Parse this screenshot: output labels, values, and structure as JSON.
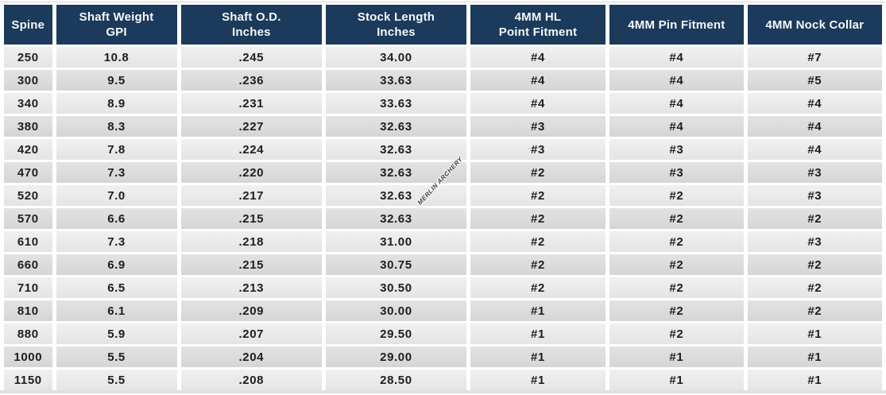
{
  "watermark": "MERLIN ARCHERY",
  "colors": {
    "header_bg": "#1b3a5c",
    "header_text": "#f6f8fa",
    "row_light": "#ececec",
    "row_dark": "#dcdcdc",
    "cell_text": "#1e1e1c",
    "page_bg": "#ffffff"
  },
  "chart_data": {
    "type": "table",
    "columns": [
      {
        "label_line1": "Spine",
        "label_line2": ""
      },
      {
        "label_line1": "Shaft Weight",
        "label_line2": "GPI"
      },
      {
        "label_line1": "Shaft O.D.",
        "label_line2": "Inches"
      },
      {
        "label_line1": "Stock Length",
        "label_line2": "Inches"
      },
      {
        "label_line1": "4MM HL",
        "label_line2": "Point Fitment"
      },
      {
        "label_line1": "4MM Pin Fitment",
        "label_line2": ""
      },
      {
        "label_line1": "4MM Nock Collar",
        "label_line2": ""
      }
    ],
    "rows": [
      [
        "250",
        "10.8",
        ".245",
        "34.00",
        "#4",
        "#4",
        "#7"
      ],
      [
        "300",
        "9.5",
        ".236",
        "33.63",
        "#4",
        "#4",
        "#5"
      ],
      [
        "340",
        "8.9",
        ".231",
        "33.63",
        "#4",
        "#4",
        "#4"
      ],
      [
        "380",
        "8.3",
        ".227",
        "32.63",
        "#3",
        "#4",
        "#4"
      ],
      [
        "420",
        "7.8",
        ".224",
        "32.63",
        "#3",
        "#3",
        "#4"
      ],
      [
        "470",
        "7.3",
        ".220",
        "32.63",
        "#2",
        "#3",
        "#3"
      ],
      [
        "520",
        "7.0",
        ".217",
        "32.63",
        "#2",
        "#2",
        "#3"
      ],
      [
        "570",
        "6.6",
        ".215",
        "32.63",
        "#2",
        "#2",
        "#2"
      ],
      [
        "610",
        "7.3",
        ".218",
        "31.00",
        "#2",
        "#2",
        "#3"
      ],
      [
        "660",
        "6.9",
        ".215",
        "30.75",
        "#2",
        "#2",
        "#2"
      ],
      [
        "710",
        "6.5",
        ".213",
        "30.50",
        "#2",
        "#2",
        "#2"
      ],
      [
        "810",
        "6.1",
        ".209",
        "30.00",
        "#1",
        "#2",
        "#2"
      ],
      [
        "880",
        "5.9",
        ".207",
        "29.50",
        "#1",
        "#2",
        "#1"
      ],
      [
        "1000",
        "5.5",
        ".204",
        "29.00",
        "#1",
        "#1",
        "#1"
      ],
      [
        "1150",
        "5.5",
        ".208",
        "28.50",
        "#1",
        "#1",
        "#1"
      ]
    ]
  }
}
